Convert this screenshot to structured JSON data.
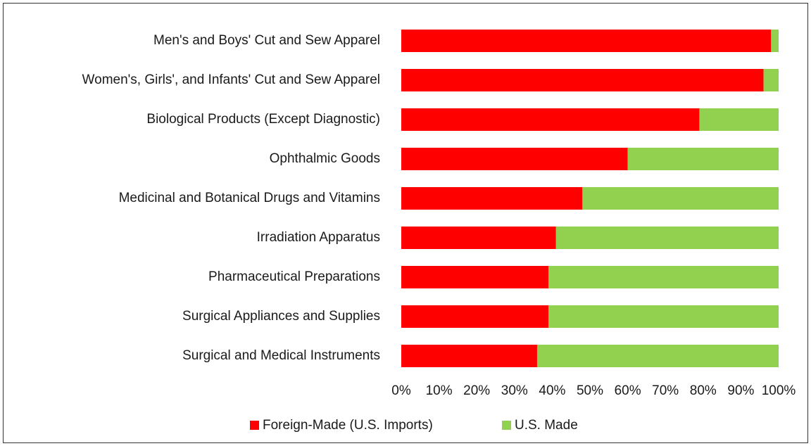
{
  "chart_data": {
    "type": "stacked_barh",
    "categories": [
      "Men's and Boys' Cut and Sew Apparel",
      "Women's, Girls', and Infants' Cut and Sew Apparel",
      "Biological Products (Except Diagnostic)",
      "Ophthalmic Goods",
      "Medicinal and Botanical Drugs and Vitamins",
      "Irradiation Apparatus",
      "Pharmaceutical Preparations",
      "Surgical Appliances and Supplies",
      "Surgical and Medical Instruments"
    ],
    "series": [
      {
        "name": "Foreign-Made (U.S. Imports)",
        "color": "#ff0000",
        "values": [
          98,
          96,
          79,
          60,
          48,
          41,
          39,
          39,
          36
        ]
      },
      {
        "name": "U.S. Made",
        "color": "#92d050",
        "values": [
          2,
          4,
          21,
          40,
          52,
          59,
          61,
          61,
          64
        ]
      }
    ],
    "xlim": [
      0,
      100
    ],
    "xticks": [
      {
        "value": 0,
        "label": "0%"
      },
      {
        "value": 10,
        "label": "10%"
      },
      {
        "value": 20,
        "label": "20%"
      },
      {
        "value": 30,
        "label": "30%"
      },
      {
        "value": 40,
        "label": "40%"
      },
      {
        "value": 50,
        "label": "50%"
      },
      {
        "value": 60,
        "label": "60%"
      },
      {
        "value": 70,
        "label": "70%"
      },
      {
        "value": 80,
        "label": "80%"
      },
      {
        "value": 90,
        "label": "90%"
      },
      {
        "value": 100,
        "label": "100%"
      }
    ],
    "legend": "bottom"
  }
}
